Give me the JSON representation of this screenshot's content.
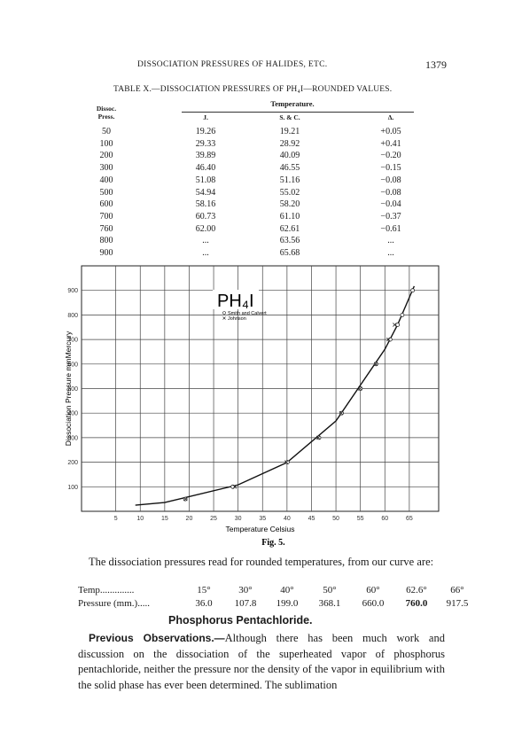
{
  "header": {
    "title": "DISSOCIATION PRESSURES OF HALIDES, ETC.",
    "page": "1379"
  },
  "table": {
    "title": "TABLE X.—DISSOCIATION PRESSURES OF PH₄I—ROUNDED VALUES.",
    "group_header": "Temperature.",
    "columns": [
      "Dissoc. Press.",
      "J.",
      "S. & C.",
      "Δ."
    ],
    "rows": [
      [
        "50",
        "19.26",
        "19.21",
        "+0.05"
      ],
      [
        "100",
        "29.33",
        "28.92",
        "+0.41"
      ],
      [
        "200",
        "39.89",
        "40.09",
        "−0.20"
      ],
      [
        "300",
        "46.40",
        "46.55",
        "−0.15"
      ],
      [
        "400",
        "51.08",
        "51.16",
        "−0.08"
      ],
      [
        "500",
        "54.94",
        "55.02",
        "−0.08"
      ],
      [
        "600",
        "58.16",
        "58.20",
        "−0.04"
      ],
      [
        "700",
        "60.73",
        "61.10",
        "−0.37"
      ],
      [
        "760",
        "62.00",
        "62.61",
        "−0.61"
      ],
      [
        "800",
        "...",
        "63.56",
        "..."
      ],
      [
        "900",
        "...",
        "65.68",
        "..."
      ]
    ]
  },
  "chart_data": {
    "type": "scatter",
    "title": "PH₄I",
    "caption": "Fig. 5.",
    "x_label": "Temperature Celsius",
    "y_label": "Dissociation Pressure mmMercury",
    "xlim": [
      -2,
      71
    ],
    "ylim": [
      0,
      1000
    ],
    "xticks": [
      5,
      10,
      15,
      20,
      25,
      30,
      35,
      40,
      45,
      50,
      55,
      60,
      65
    ],
    "yticks": [
      100,
      200,
      300,
      400,
      500,
      600,
      700,
      800,
      900
    ],
    "grid": true,
    "series": [
      {
        "name": "Smith and Calvert",
        "marker": "o",
        "color": "#222",
        "x": [
          19.21,
          28.92,
          40.09,
          46.55,
          51.16,
          55.02,
          58.2,
          61.1,
          62.61,
          63.56,
          65.68
        ],
        "values": [
          50,
          100,
          200,
          300,
          400,
          500,
          600,
          700,
          760,
          800,
          900
        ]
      },
      {
        "name": "Johnson",
        "marker": "x",
        "color": "#222",
        "x": [
          19.26,
          29.33,
          39.89,
          46.4,
          51.08,
          54.94,
          58.16,
          60.73,
          62.0
        ],
        "values": [
          50,
          100,
          200,
          300,
          400,
          500,
          600,
          700,
          760
        ]
      }
    ],
    "curve": {
      "color": "#111",
      "x": [
        9,
        15,
        30,
        40,
        50,
        60,
        62.6,
        66
      ],
      "values": [
        25,
        36,
        107.8,
        199,
        368.1,
        660,
        760,
        917.5
      ]
    }
  },
  "readings": {
    "intro": "The dissociation pressures read for rounded temperatures, from our curve are:",
    "rows": [
      [
        "Temp..............",
        "15°",
        "30°",
        "40°",
        "50°",
        "60°",
        "62.6°",
        "66°"
      ],
      [
        "Pressure (mm.).....",
        "36.0",
        "107.8",
        "199.0",
        "368.1",
        "660.0",
        "760.0",
        "917.5"
      ]
    ]
  },
  "section": {
    "heading": "Phosphorus Pentachloride.",
    "lead": "Previous Observations.—",
    "text": "Although there has been much work and discussion on the dissociation of the superheated vapor of phosphorus pentachloride, neither the pressure nor the density of the vapor in equilibrium with the solid phase has ever been determined. The sublimation"
  }
}
